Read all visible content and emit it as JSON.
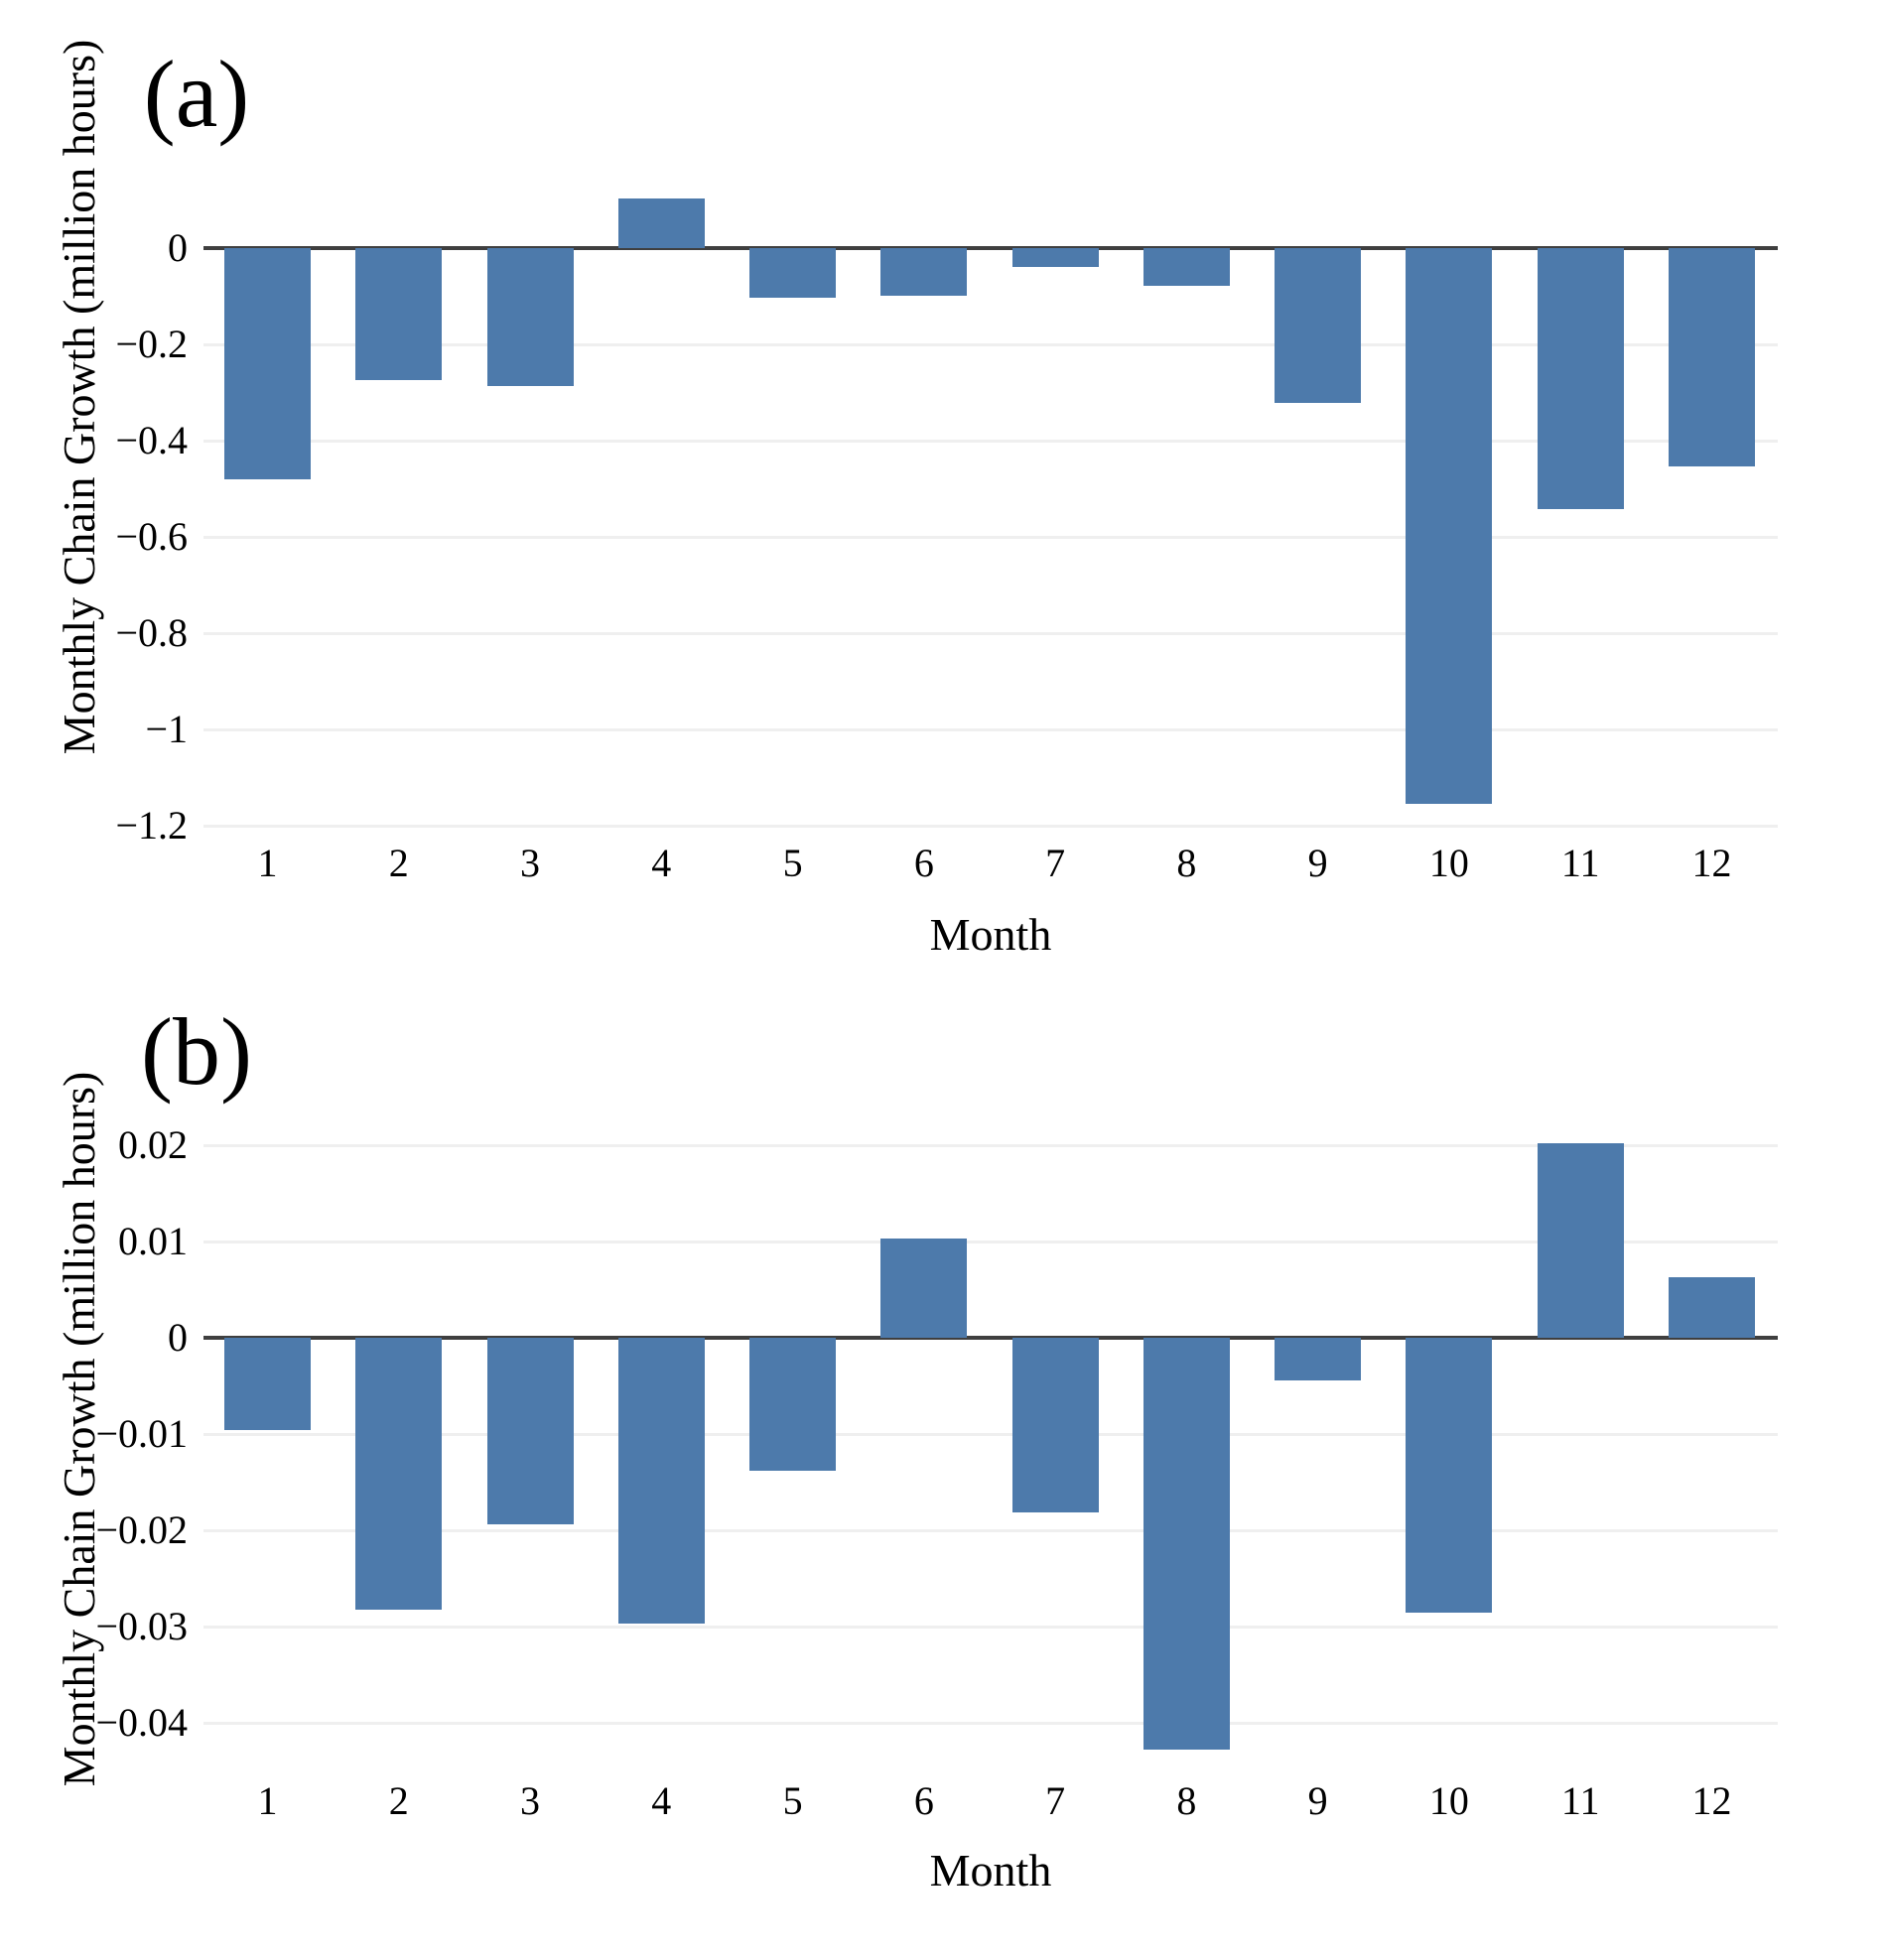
{
  "figure": {
    "description_text": "",
    "bar_color": "#4d7aab",
    "zero_line_color": "#3f3f3f",
    "gridline_color": "#efefef"
  },
  "panels": [
    {
      "label": "(a)",
      "y_axis_title": "Monthly Chain Growth (million hours)",
      "x_axis_title": "Month"
    },
    {
      "label": "(b)",
      "y_axis_title": "Monthly Chain Growth (million hours)",
      "x_axis_title": "Month"
    }
  ],
  "chart_data": [
    {
      "type": "bar",
      "panel": "(a)",
      "title": "",
      "xlabel": "Month",
      "ylabel": "Monthly Chain Growth (million hours)",
      "categories": [
        "1",
        "2",
        "3",
        "4",
        "5",
        "6",
        "7",
        "8",
        "9",
        "10",
        "11",
        "12"
      ],
      "values": [
        -0.481,
        -0.274,
        -0.286,
        0.104,
        -0.102,
        -0.099,
        -0.039,
        -0.077,
        -0.322,
        -1.155,
        -0.541,
        -0.453
      ],
      "ylim": [
        -1.22,
        0.19
      ],
      "yticks": [
        0,
        -0.2,
        -0.4,
        -0.6,
        -0.8,
        -1,
        -1.2
      ],
      "ytick_labels": [
        "0",
        "−0.2",
        "−0.4",
        "−0.6",
        "−0.8",
        "−1",
        "−1.2"
      ],
      "grid": true,
      "legend": "none",
      "bar_color": "#4d7aab"
    },
    {
      "type": "bar",
      "panel": "(b)",
      "title": "",
      "xlabel": "Month",
      "ylabel": "Monthly Chain Growth (million hours)",
      "categories": [
        "1",
        "2",
        "3",
        "4",
        "5",
        "6",
        "7",
        "8",
        "9",
        "10",
        "11",
        "12"
      ],
      "values": [
        -0.0096,
        -0.0282,
        -0.0194,
        -0.0297,
        -0.0138,
        0.0103,
        -0.0181,
        -0.0428,
        -0.0044,
        -0.0285,
        0.0202,
        0.0063
      ],
      "ylim": [
        -0.044,
        0.023
      ],
      "yticks": [
        0.02,
        0.01,
        0,
        -0.01,
        -0.02,
        -0.03,
        -0.04
      ],
      "ytick_labels": [
        "0.02",
        "0.01",
        "0",
        "−0.01",
        "−0.02",
        "−0.03",
        "−0.04"
      ],
      "grid": true,
      "legend": "none",
      "bar_color": "#4d7aab"
    }
  ]
}
